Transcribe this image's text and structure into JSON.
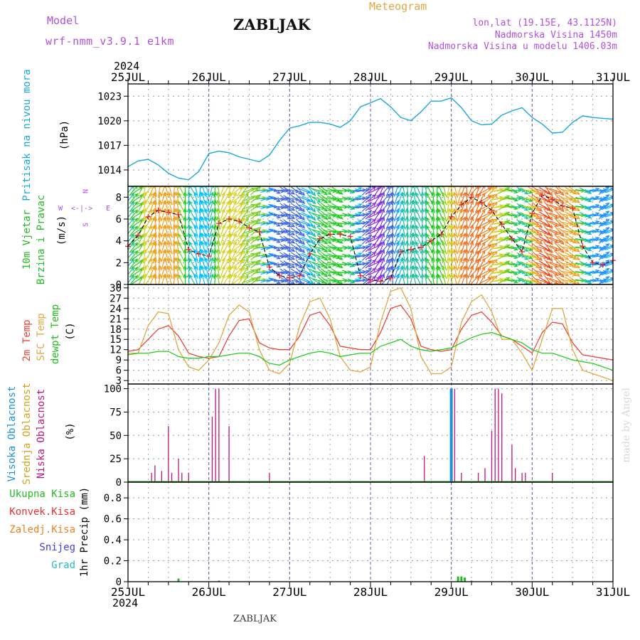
{
  "header": {
    "model_label": "Model",
    "model_name": "wrf-nmm_v3.9.1  e1km",
    "title": "ZABLJAK",
    "meteogram_label": "Meteogram",
    "coords": "lon,lat (19.15E, 43.1125N)",
    "elevation": "Nadmorska Visina 1450m",
    "model_elevation": "Nadmorska Visina u modelu 1406.03m",
    "footer_title": "ZABLJAK",
    "credit": "made by Angel"
  },
  "time_axis": {
    "year": "2024",
    "labels": [
      "25JUL",
      "26JUL",
      "27JUL",
      "28JUL",
      "29JUL",
      "30JUL",
      "31JUL"
    ]
  },
  "colors": {
    "pressure": "#1aa7e0",
    "temp2m": "#e8443a",
    "sfc": "#e0a840",
    "dew": "#22cc22",
    "cloud_high": "#1e90e0",
    "cloud_mid": "#d4a020",
    "cloud_low": "#c0157c",
    "precip_total": "#22bb22",
    "conv": "#e83030",
    "frozen": "#f07f20",
    "snow": "#4040e0",
    "hail": "#20c0c0",
    "wind_label": "#22bb22",
    "compass": "#b050e0"
  },
  "panels": {
    "pressure": {
      "label": "Pritisak na nivou mora",
      "unit": "(hPa)",
      "ticks": [
        "1014",
        "1017",
        "1020",
        "1023"
      ]
    },
    "wind": {
      "label1": "10m Vjetar",
      "label2": "Brzina i Pravac",
      "unit": "(m/s)",
      "ticks": [
        "0",
        "2",
        "4",
        "6",
        "8"
      ],
      "compass_w": "W",
      "compass_e": "E",
      "compass_mid": "<-|->",
      "compass_n": "N",
      "compass_s": "S"
    },
    "temp": {
      "label_2m": "2m Temp",
      "label_sfc": "SFC Temp",
      "label_dew": "dewpt Temp",
      "unit": "(C)",
      "ticks": [
        "3",
        "6",
        "9",
        "12",
        "15",
        "18",
        "21",
        "24",
        "27",
        "30"
      ]
    },
    "cloud": {
      "label_high": "Visoka Oblacnost",
      "label_mid": "Srednja Oblacnost",
      "label_low": "Niska Oblacnost",
      "unit": "(%)",
      "ticks": [
        "0",
        "25",
        "50",
        "75",
        "100"
      ]
    },
    "precip": {
      "legend": [
        "Ukupna Kisa",
        "Konvek.Kisa",
        "Zaledj.Kisa",
        "Snijeg",
        "Grad"
      ],
      "unit": "1hr Precip (mm)",
      "ticks": [
        "0",
        "0.2",
        "0.4",
        "0.6",
        "0.8"
      ]
    }
  },
  "chart_data": [
    {
      "type": "line",
      "name": "pressure",
      "ylim": [
        1012,
        1024.5
      ],
      "x_hours": [
        0,
        3,
        6,
        9,
        12,
        15,
        18,
        21,
        24,
        27,
        30,
        33,
        36,
        39,
        42,
        45,
        48,
        51,
        54,
        57,
        60,
        63,
        66,
        69,
        72,
        75,
        78,
        81,
        84,
        87,
        90,
        93,
        96,
        99,
        102,
        105,
        108,
        111,
        114,
        117,
        120,
        123,
        126,
        129,
        132,
        135,
        138,
        141,
        144
      ],
      "series": [
        {
          "values": [
            1014.4,
            1015.1,
            1015.3,
            1014.6,
            1013.6,
            1013.0,
            1012.8,
            1013.8,
            1016.0,
            1016.3,
            1016.1,
            1015.6,
            1015.3,
            1015.0,
            1015.8,
            1017.6,
            1019.1,
            1019.4,
            1019.8,
            1019.8,
            1019.6,
            1019.2,
            1020.0,
            1021.7,
            1022.2,
            1022.7,
            1021.7,
            1020.4,
            1020.0,
            1021.1,
            1022.4,
            1022.4,
            1022.8,
            1021.6,
            1020.0,
            1019.5,
            1019.6,
            1020.7,
            1021.2,
            1021.6,
            1020.4,
            1019.6,
            1018.5,
            1018.6,
            1019.8,
            1020.6,
            1020.4,
            1020.3,
            1020.2
          ]
        }
      ]
    },
    {
      "type": "line",
      "name": "wind_speed",
      "ylim": [
        0,
        9
      ],
      "x_hours": [
        0,
        3,
        6,
        9,
        12,
        15,
        18,
        21,
        24,
        27,
        30,
        33,
        36,
        39,
        42,
        45,
        48,
        51,
        54,
        57,
        60,
        63,
        66,
        69,
        72,
        75,
        78,
        81,
        84,
        87,
        90,
        93,
        96,
        99,
        102,
        105,
        108,
        111,
        114,
        117,
        120,
        123,
        126,
        129,
        132,
        135,
        138,
        141,
        144
      ],
      "series": [
        {
          "values": [
            3.5,
            4.5,
            6.2,
            6.8,
            6.6,
            6.4,
            3.2,
            2.8,
            2.6,
            5.6,
            6.0,
            5.8,
            5.2,
            4.8,
            1.6,
            0.8,
            0.6,
            0.8,
            2.8,
            4.2,
            4.6,
            4.6,
            4.4,
            0.8,
            0.4,
            0.3,
            0.6,
            3.0,
            3.2,
            3.4,
            4.0,
            4.6,
            6.2,
            7.3,
            8.0,
            7.5,
            6.8,
            5.5,
            4.2,
            3.0,
            6.5,
            8.2,
            7.8,
            7.2,
            7.0,
            3.5,
            2.0,
            1.8,
            2.2
          ]
        }
      ]
    },
    {
      "type": "line",
      "name": "temperature",
      "ylim": [
        2,
        31
      ],
      "x_hours": [
        0,
        3,
        6,
        9,
        12,
        15,
        18,
        21,
        24,
        27,
        30,
        33,
        36,
        39,
        42,
        45,
        48,
        51,
        54,
        57,
        60,
        63,
        66,
        69,
        72,
        75,
        78,
        81,
        84,
        87,
        90,
        93,
        96,
        99,
        102,
        105,
        108,
        111,
        114,
        117,
        120,
        123,
        126,
        129,
        132,
        135,
        138,
        141,
        144
      ],
      "series": [
        {
          "name": "2m Temp",
          "values": [
            11.5,
            12,
            15,
            18,
            19,
            16,
            11,
            10,
            9.5,
            10,
            16,
            20.5,
            21,
            14,
            12.5,
            12,
            12,
            16,
            22,
            23,
            19,
            13,
            12.5,
            12,
            12,
            17,
            24,
            25,
            21,
            13,
            12,
            11.5,
            12,
            18,
            22,
            23,
            20,
            16,
            15,
            13,
            11,
            17,
            20,
            19.5,
            14,
            10.5,
            10,
            9.5,
            9
          ]
        },
        {
          "name": "SFC Temp",
          "values": [
            11,
            11,
            19,
            23,
            22.5,
            12,
            7,
            6,
            9,
            14,
            22,
            25,
            23,
            12,
            6,
            5,
            8,
            19,
            26,
            27,
            21,
            10,
            6,
            5.5,
            7,
            20,
            29,
            30,
            24,
            10,
            5,
            5,
            7,
            20,
            26,
            28,
            23,
            15,
            15,
            11,
            6,
            15,
            24,
            24,
            12,
            6,
            5,
            4,
            3
          ]
        },
        {
          "name": "dewpt Temp",
          "values": [
            10.5,
            11,
            11,
            11.5,
            11.5,
            10,
            9.5,
            9.5,
            10,
            10,
            10.5,
            11,
            11,
            10,
            8,
            7.5,
            9,
            10,
            11,
            11.5,
            11,
            10,
            10.5,
            11,
            11,
            13,
            14,
            15,
            13,
            12,
            11.5,
            12,
            12.5,
            14,
            15.5,
            16.5,
            17,
            16,
            15,
            14,
            12,
            11,
            11,
            10,
            9,
            8.5,
            8,
            7,
            6
          ]
        }
      ]
    },
    {
      "type": "bar",
      "name": "cloud_cover",
      "ylim": [
        0,
        100
      ],
      "series": [
        {
          "name": "Visoka Oblacnost",
          "x_hours": [
            96
          ],
          "values": [
            100
          ]
        },
        {
          "name": "Niska Oblacnost",
          "x_hours": [
            7,
            8,
            10,
            12,
            13,
            15,
            16,
            18,
            25,
            26,
            27,
            30,
            42,
            88,
            97,
            99,
            104,
            106,
            108,
            109,
            110,
            111,
            114,
            115,
            117,
            118,
            126
          ],
          "values": [
            10,
            18,
            12,
            60,
            10,
            25,
            10,
            10,
            70,
            100,
            100,
            60,
            10,
            28,
            100,
            10,
            10,
            15,
            55,
            100,
            100,
            95,
            40,
            15,
            10,
            10,
            10
          ]
        }
      ]
    },
    {
      "type": "bar",
      "name": "precip_1hr",
      "ylim": [
        0,
        0.95
      ],
      "series": [
        {
          "name": "Ukupna Kisa",
          "x_hours": [
            15,
            27,
            98,
            99,
            100,
            102
          ],
          "values": [
            0.03,
            0.01,
            0.05,
            0.05,
            0.04,
            0.01
          ]
        }
      ]
    }
  ]
}
